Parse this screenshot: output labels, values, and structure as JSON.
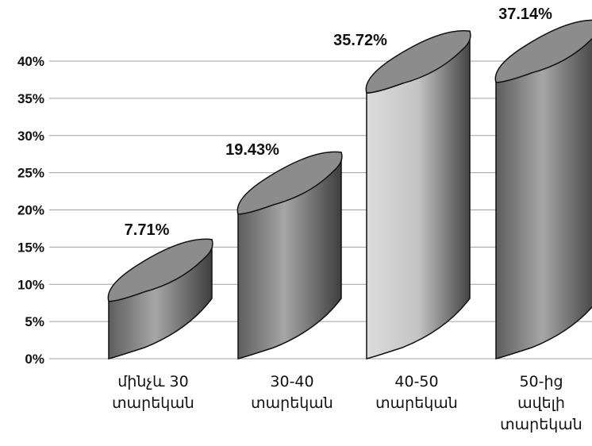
{
  "chart_data": {
    "type": "bar",
    "style": "3d-cylinder",
    "categories": [
      [
        "մինչև 30",
        "տարեկան"
      ],
      [
        "30-40",
        "տարեկան"
      ],
      [
        "40-50",
        "տարեկան"
      ],
      [
        "50-ից",
        "ավելի",
        "տարեկան"
      ]
    ],
    "values": [
      7.71,
      19.43,
      35.72,
      37.14
    ],
    "data_labels": [
      "7.71%",
      "19.43%",
      "35.72%",
      "37.14%"
    ],
    "y_ticks": [
      "0%",
      "5%",
      "10%",
      "15%",
      "20%",
      "25%",
      "30%",
      "35%",
      "40%"
    ],
    "ylim": [
      0,
      40
    ],
    "grid": true,
    "legend": "none",
    "colors": {
      "bar_dark": "#8a8a8a",
      "bar_light": "#c8c8c8",
      "top": "#8c8c8c",
      "grid": "#a0a0a0"
    }
  }
}
